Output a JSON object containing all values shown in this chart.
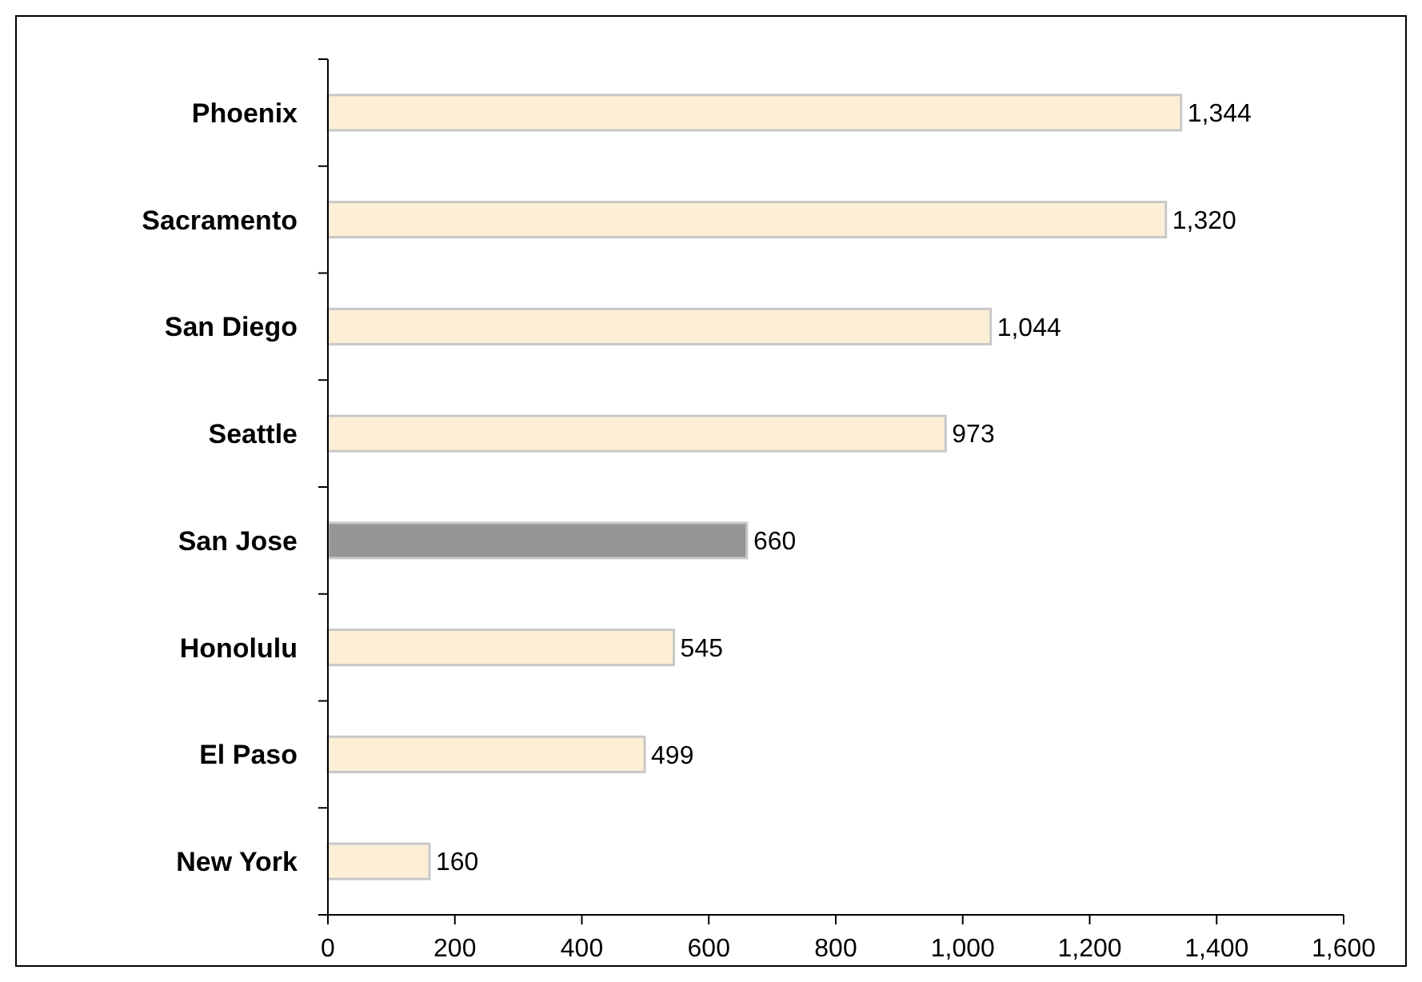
{
  "chart_data": {
    "type": "bar",
    "orientation": "horizontal",
    "categories": [
      "Phoenix",
      "Sacramento",
      "San Diego",
      "Seattle",
      "San Jose",
      "Honolulu",
      "El Paso",
      "New York"
    ],
    "values": [
      1344,
      1320,
      1044,
      973,
      660,
      545,
      499,
      160
    ],
    "colors": [
      "#fcefd6",
      "#fcefd6",
      "#fcefd6",
      "#fcefd6",
      "#969696",
      "#fcefd6",
      "#fcefd6",
      "#fcefd6"
    ],
    "value_labels": [
      "1,344",
      "1,320",
      "1,044",
      "973",
      "660",
      "545",
      "499",
      "160"
    ],
    "xlim": [
      0,
      1600
    ],
    "xticks": [
      0,
      200,
      400,
      600,
      800,
      {
        "value": 1000,
        "label": "1,000"
      },
      {
        "value": 1200,
        "label": "1,200"
      },
      {
        "value": 1400,
        "label": "1,400"
      },
      {
        "value": 1600,
        "label": "1,600"
      }
    ],
    "grid": false
  }
}
